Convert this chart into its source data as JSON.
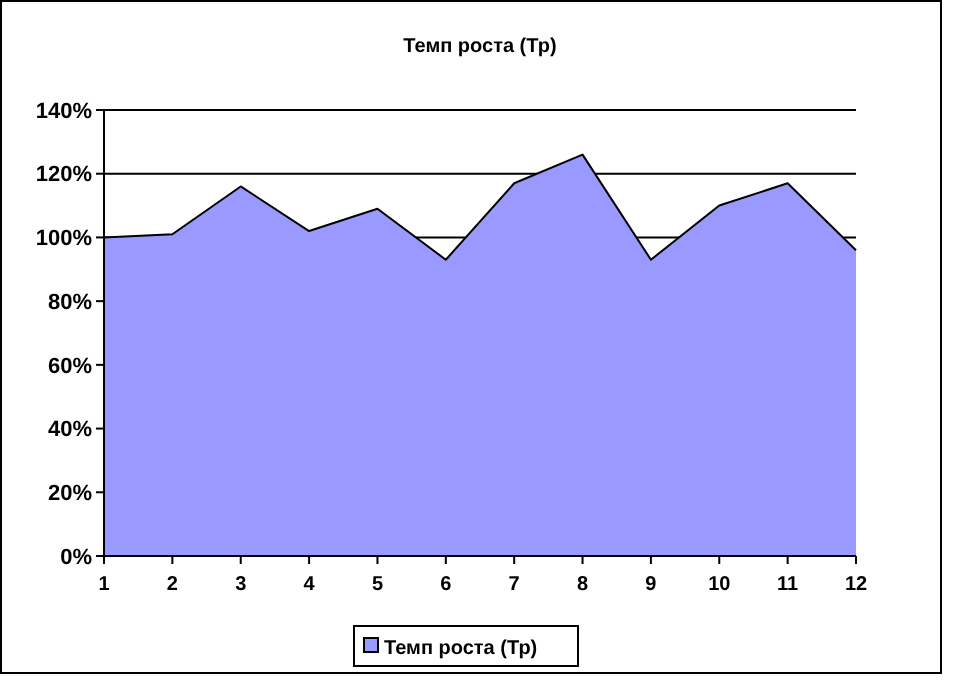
{
  "chart_data": {
    "type": "area",
    "title": "Темп роста (Тр)",
    "x": [
      1,
      2,
      3,
      4,
      5,
      6,
      7,
      8,
      9,
      10,
      11,
      12
    ],
    "xlim": [
      1,
      12
    ],
    "xticks": [
      1,
      2,
      3,
      4,
      5,
      6,
      7,
      8,
      9,
      10,
      11,
      12
    ],
    "series": [
      {
        "name": "Темп роста (Тр)",
        "color": "#9999ff",
        "values": [
          100,
          101,
          116,
          102,
          109,
          93,
          117,
          126,
          93,
          110,
          117,
          96
        ]
      }
    ],
    "ylim": [
      0,
      140
    ],
    "yticks": [
      {
        "value": 0,
        "label": "0%"
      },
      {
        "value": 20,
        "label": "20%"
      },
      {
        "value": 40,
        "label": "40%"
      },
      {
        "value": 60,
        "label": "60%"
      },
      {
        "value": 80,
        "label": "80%"
      },
      {
        "value": 100,
        "label": "100%"
      },
      {
        "value": 120,
        "label": "120%"
      },
      {
        "value": 140,
        "label": "140%"
      }
    ],
    "grid": "y",
    "legend": "bottom"
  }
}
